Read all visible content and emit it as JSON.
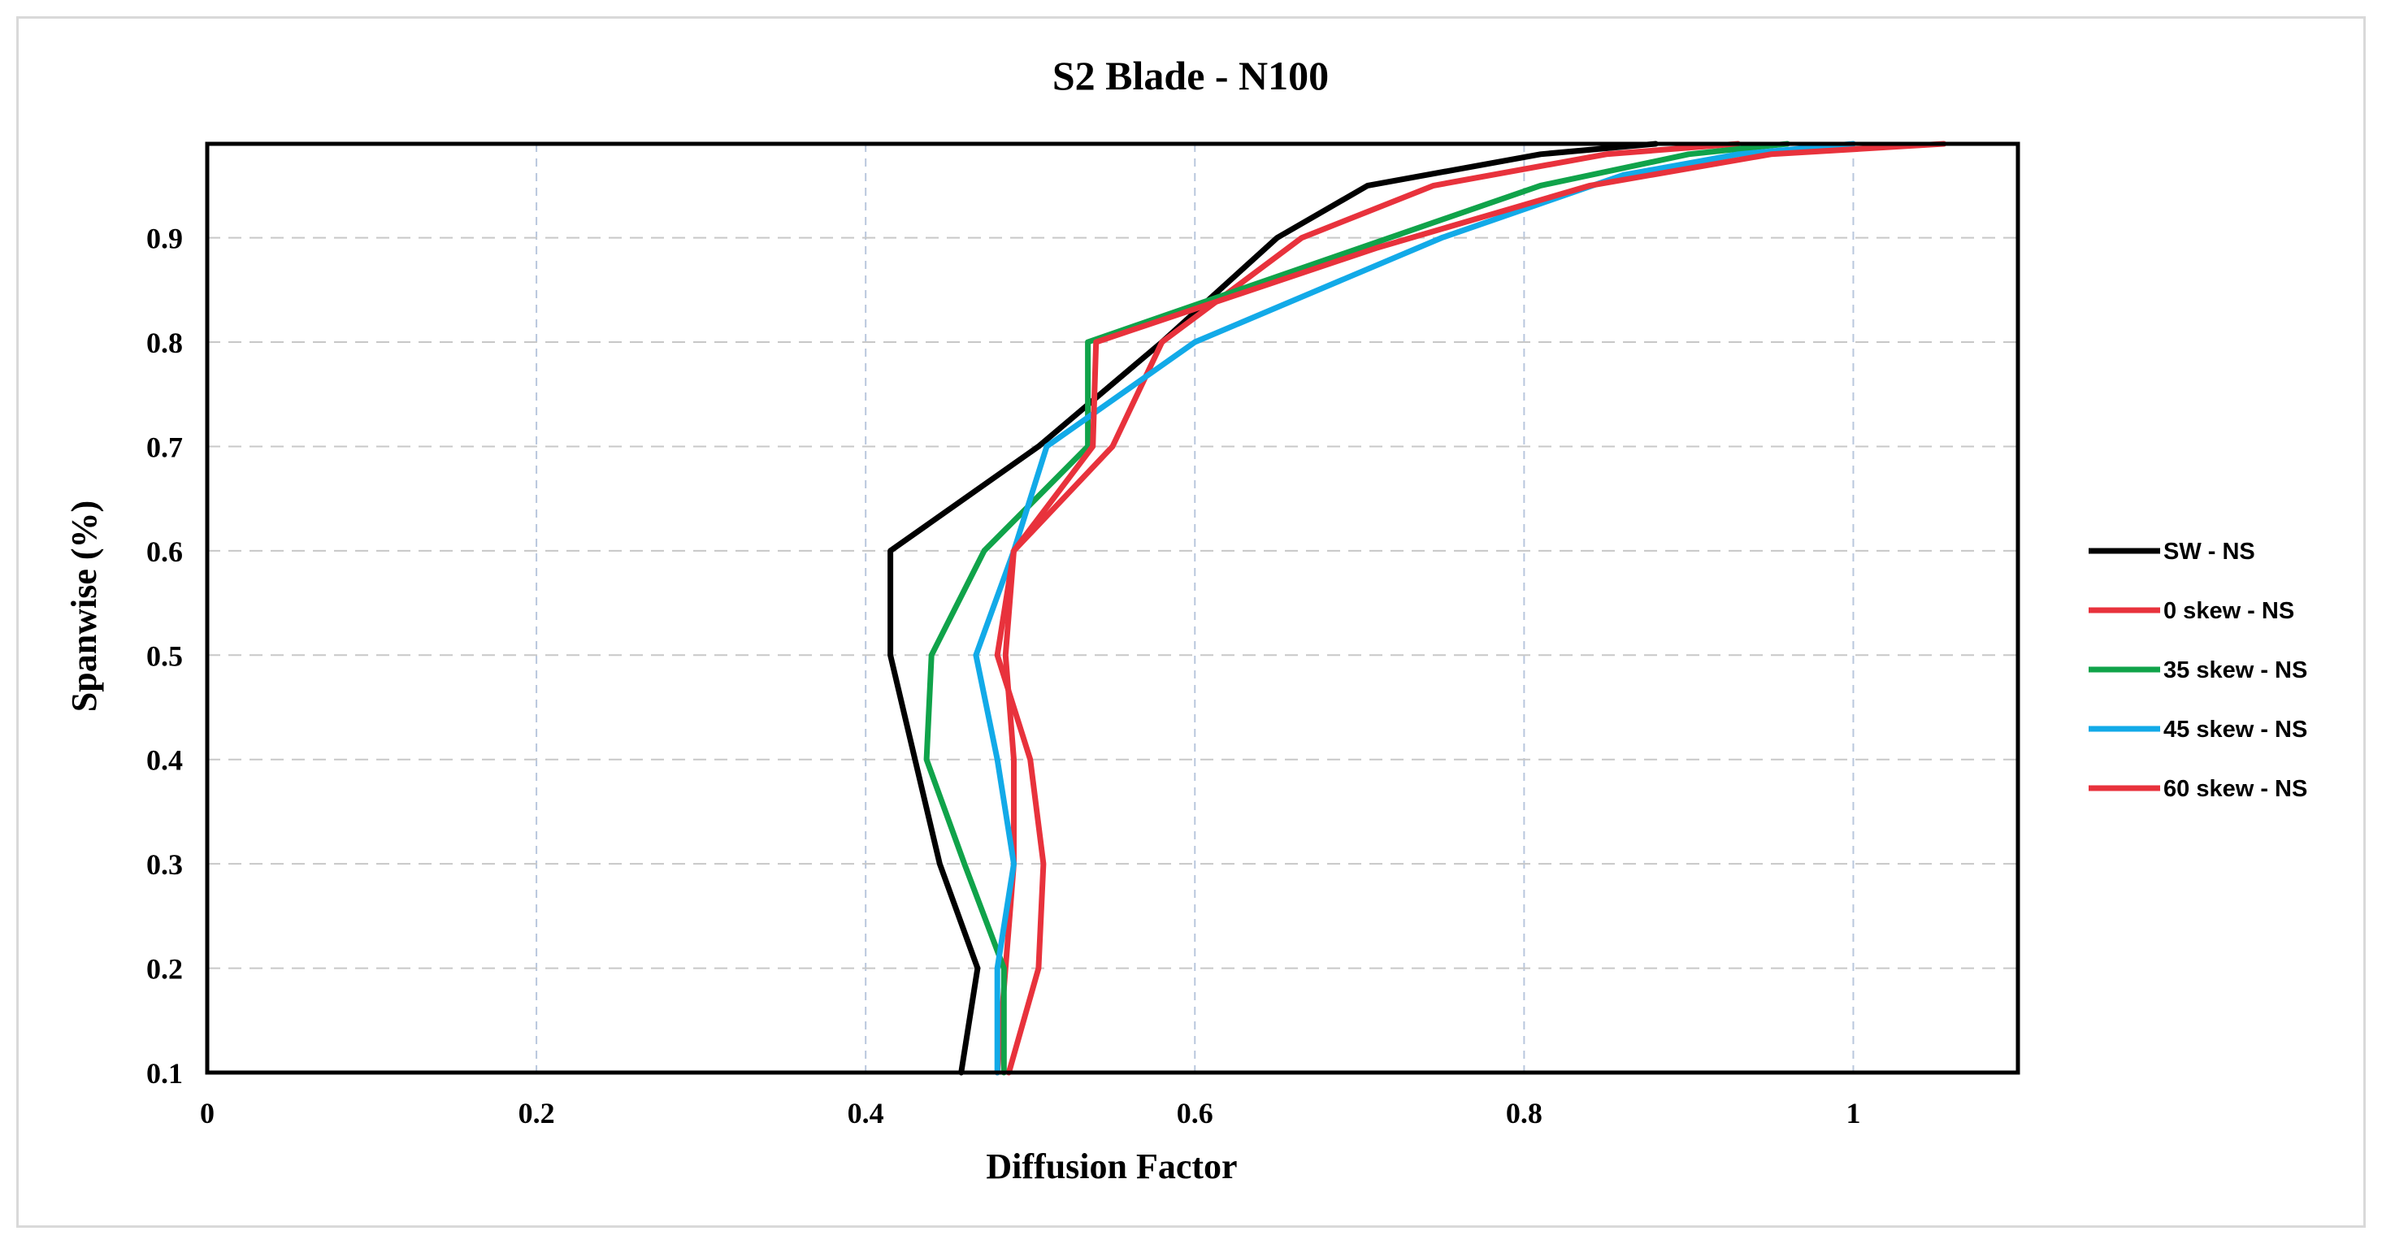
{
  "chart_data": {
    "type": "line",
    "title": "S2 Blade - N100",
    "xlabel": "Diffusion Factor",
    "ylabel": "Spanwise (%)",
    "xlim": [
      0,
      1.1
    ],
    "ylim": [
      0.1,
      0.99
    ],
    "xticks": [
      "0",
      "0.2",
      "0.4",
      "0.6",
      "0.8",
      "1"
    ],
    "yticks": [
      "0.1",
      "0.2",
      "0.3",
      "0.4",
      "0.5",
      "0.6",
      "0.7",
      "0.8",
      "0.9"
    ],
    "grid": true,
    "legend_position": "right",
    "series": [
      {
        "name": "SW - NS",
        "color": "#000000",
        "points": [
          [
            0.458,
            0.1
          ],
          [
            0.468,
            0.2
          ],
          [
            0.445,
            0.3
          ],
          [
            0.43,
            0.4
          ],
          [
            0.415,
            0.5
          ],
          [
            0.415,
            0.6
          ],
          [
            0.505,
            0.7
          ],
          [
            0.58,
            0.8
          ],
          [
            0.65,
            0.9
          ],
          [
            0.705,
            0.95
          ],
          [
            0.81,
            0.98
          ],
          [
            0.88,
            0.99
          ]
        ]
      },
      {
        "name": "0 skew - NS",
        "color": "#e8323c",
        "points": [
          [
            0.48,
            0.1
          ],
          [
            0.485,
            0.2
          ],
          [
            0.49,
            0.3
          ],
          [
            0.49,
            0.4
          ],
          [
            0.485,
            0.5
          ],
          [
            0.49,
            0.6
          ],
          [
            0.55,
            0.7
          ],
          [
            0.58,
            0.8
          ],
          [
            0.665,
            0.9
          ],
          [
            0.745,
            0.95
          ],
          [
            0.85,
            0.98
          ],
          [
            0.93,
            0.99
          ]
        ]
      },
      {
        "name": "35 skew - NS",
        "color": "#10a34a",
        "points": [
          [
            0.484,
            0.1
          ],
          [
            0.484,
            0.2
          ],
          [
            0.46,
            0.3
          ],
          [
            0.437,
            0.4
          ],
          [
            0.44,
            0.5
          ],
          [
            0.472,
            0.6
          ],
          [
            0.535,
            0.7
          ],
          [
            0.535,
            0.8
          ],
          [
            0.7,
            0.89
          ],
          [
            0.81,
            0.95
          ],
          [
            0.9,
            0.98
          ],
          [
            0.96,
            0.99
          ]
        ]
      },
      {
        "name": "45 skew - NS",
        "color": "#12aae8",
        "points": [
          [
            0.48,
            0.1
          ],
          [
            0.48,
            0.2
          ],
          [
            0.49,
            0.3
          ],
          [
            0.48,
            0.4
          ],
          [
            0.467,
            0.5
          ],
          [
            0.49,
            0.6
          ],
          [
            0.51,
            0.7
          ],
          [
            0.6,
            0.8
          ],
          [
            0.75,
            0.9
          ],
          [
            0.86,
            0.96
          ],
          [
            0.93,
            0.98
          ],
          [
            1.0,
            0.99
          ]
        ]
      },
      {
        "name": "60 skew - NS",
        "color": "#e8323c",
        "points": [
          [
            0.487,
            0.1
          ],
          [
            0.505,
            0.2
          ],
          [
            0.508,
            0.3
          ],
          [
            0.5,
            0.4
          ],
          [
            0.48,
            0.5
          ],
          [
            0.49,
            0.6
          ],
          [
            0.538,
            0.7
          ],
          [
            0.54,
            0.8
          ],
          [
            0.71,
            0.89
          ],
          [
            0.84,
            0.95
          ],
          [
            0.95,
            0.98
          ],
          [
            1.055,
            0.99
          ]
        ]
      }
    ]
  }
}
